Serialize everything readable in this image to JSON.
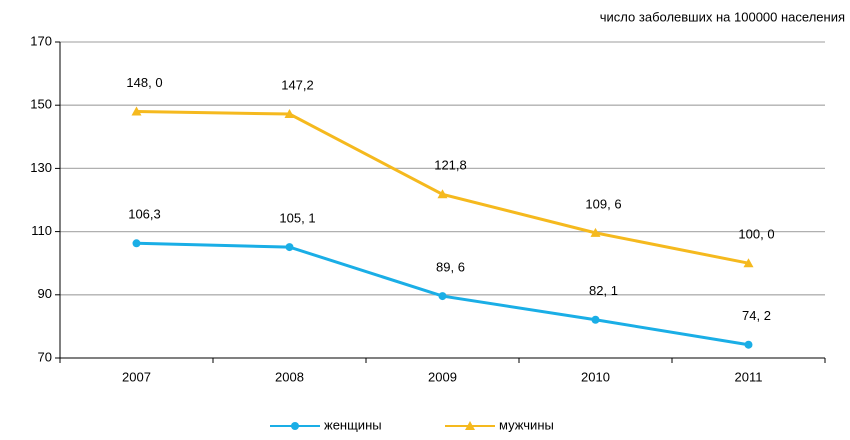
{
  "chart_data": {
    "type": "line",
    "unit_label": "число заболевших на 100000 населения",
    "categories": [
      "2007",
      "2008",
      "2009",
      "2010",
      "2011"
    ],
    "series": [
      {
        "name": "женщины",
        "color": "#1aaee6",
        "marker": "circle",
        "values": [
          106.3,
          105.1,
          89.6,
          82.1,
          74.2
        ],
        "value_labels": [
          "106,3",
          "105, 1",
          "89, 6",
          "82, 1",
          "74, 2"
        ]
      },
      {
        "name": "мужчины",
        "color": "#f5b91e",
        "marker": "triangle",
        "values": [
          148.0,
          147.2,
          121.8,
          109.6,
          100.0
        ],
        "value_labels": [
          "148, 0",
          "147,2",
          "121,8",
          "109, 6",
          "100, 0"
        ]
      }
    ],
    "ylim": [
      70,
      170
    ],
    "yticks": [
      70,
      90,
      110,
      130,
      150,
      170
    ],
    "grid": true
  }
}
